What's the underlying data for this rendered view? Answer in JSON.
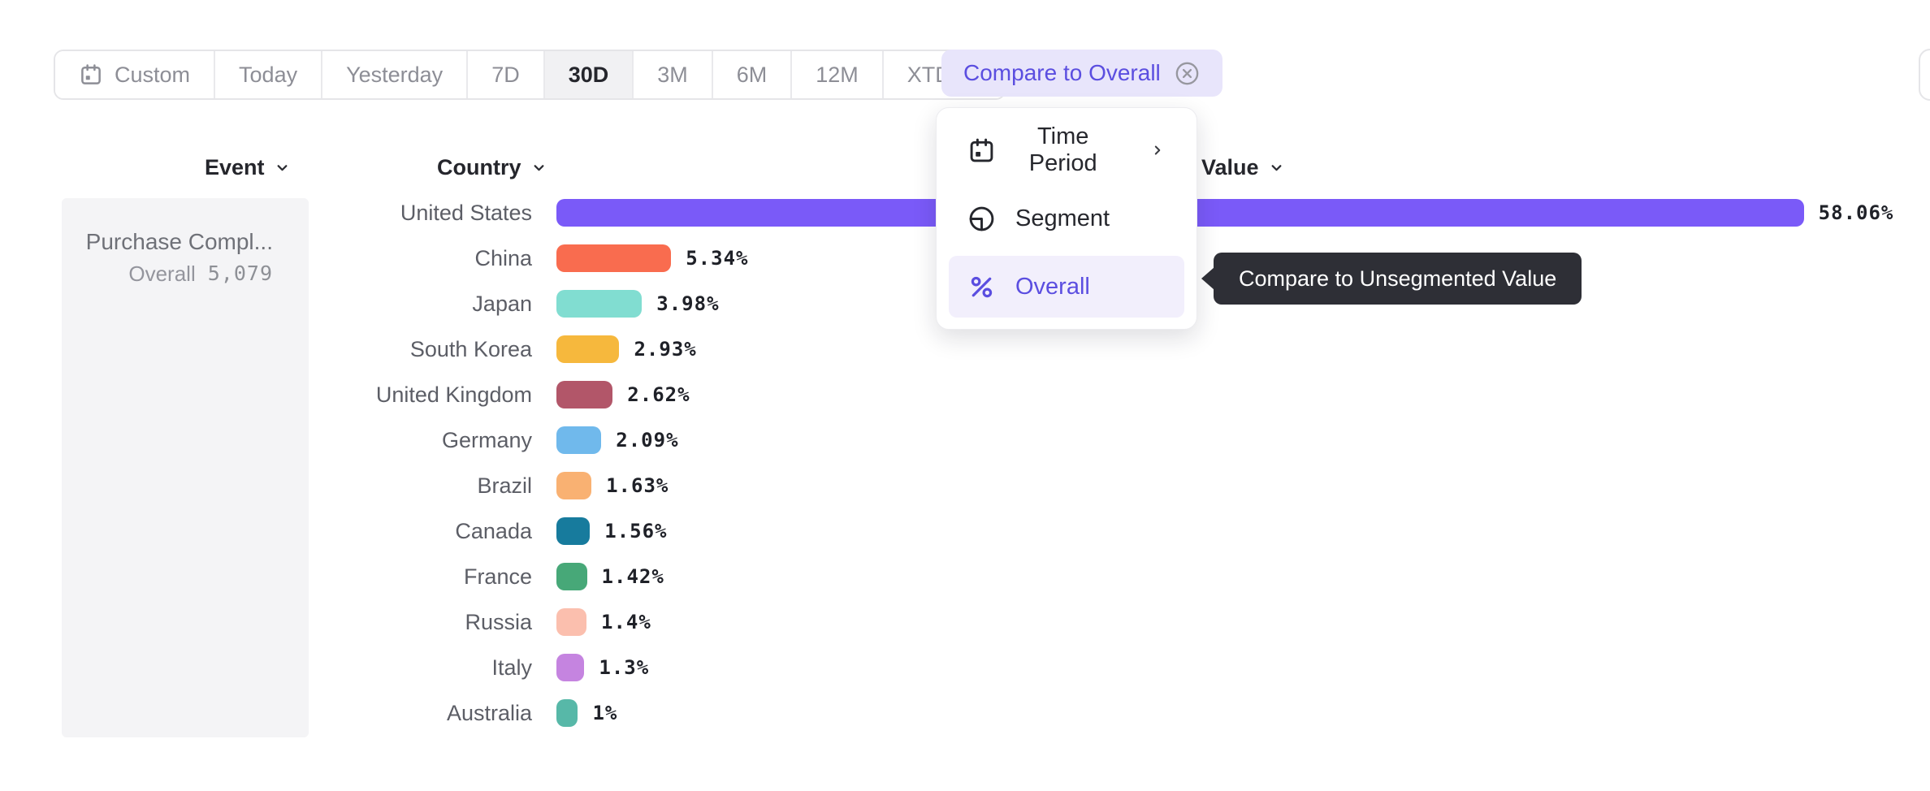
{
  "toolbar": {
    "periods": [
      {
        "label": "Custom",
        "icon": "calendar",
        "selected": false
      },
      {
        "label": "Today",
        "selected": false
      },
      {
        "label": "Yesterday",
        "selected": false
      },
      {
        "label": "7D",
        "selected": false
      },
      {
        "label": "30D",
        "selected": true
      },
      {
        "label": "3M",
        "selected": false
      },
      {
        "label": "6M",
        "selected": false
      },
      {
        "label": "12M",
        "selected": false
      },
      {
        "label": "XTD",
        "selected": false,
        "trailing_icon": "chevron-down"
      }
    ],
    "compare_button": {
      "label": "Compare to Overall",
      "icon": "close-circle",
      "text_color": "#5b4ee0",
      "bg_color": "#e8e5fb"
    }
  },
  "menu": {
    "items": [
      {
        "label": "Time Period",
        "icon": "calendar",
        "trailing_icon": "chevron-right",
        "highlighted": false
      },
      {
        "label": "Segment",
        "icon": "segment",
        "highlighted": false
      },
      {
        "label": "Overall",
        "icon": "percent",
        "highlighted": true
      }
    ],
    "highlight_color": "#5b4ee0"
  },
  "tooltip": {
    "text": "Compare to Unsegmented Value",
    "bg_color": "#2e2f36"
  },
  "columns": {
    "event": "Event",
    "country": "Country",
    "value": "Value"
  },
  "event_panel": {
    "title": "Purchase Compl...",
    "overall_label": "Overall",
    "overall_value": "5,079"
  },
  "chart_data": {
    "type": "bar",
    "orientation": "horizontal",
    "title": "",
    "xlabel": "",
    "ylabel": "Country",
    "value_unit": "%",
    "xlim": [
      0,
      60
    ],
    "grid": false,
    "categories": [
      "United States",
      "China",
      "Japan",
      "South Korea",
      "United Kingdom",
      "Germany",
      "Brazil",
      "Canada",
      "France",
      "Russia",
      "Italy",
      "Australia"
    ],
    "values": [
      58.06,
      5.34,
      3.98,
      2.93,
      2.62,
      2.09,
      1.63,
      1.56,
      1.42,
      1.4,
      1.3,
      1
    ],
    "value_labels": [
      "58.06%",
      "5.34%",
      "3.98%",
      "2.93%",
      "2.62%",
      "2.09%",
      "1.63%",
      "1.56%",
      "1.42%",
      "1.4%",
      "1.3%",
      "1%"
    ],
    "colors": [
      "#7a5af8",
      "#f96c4f",
      "#81ddd1",
      "#f6b83d",
      "#b25669",
      "#70b9ec",
      "#f9b172",
      "#177b9d",
      "#47a878",
      "#fbbfae",
      "#c584e0",
      "#57b8a8"
    ]
  }
}
